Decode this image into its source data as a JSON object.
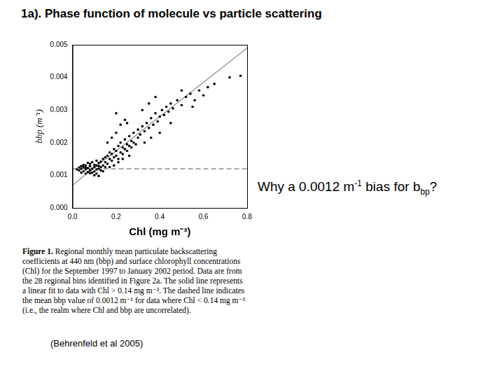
{
  "heading": "1a). Phase function of molecule vs particle scattering",
  "question": [
    {
      "text": "Why a 0.0012 m"
    },
    {
      "sup": "-1"
    },
    {
      "text": " bias for b"
    },
    {
      "sub": "bp"
    },
    {
      "text": "?"
    }
  ],
  "caption": {
    "label": "Figure 1.",
    "text": "Regional monthly mean particulate backscattering coefficients at 440 nm (bbp) and surface chlorophyll concentrations (Chl) for the September 1997 to January 2002 period. Data are from the 28 regional bins identified in Figure 2a. The solid line represents a linear fit to data with Chl > 0.14 mg m⁻³. The dashed line indicates the mean bbp value of 0.0012 m⁻¹ for data where Chl < 0.14 mg m⁻³ (i.e., the realm where Chl and bbp are uncorrelated)."
  },
  "citation": "(Behrenfeld et al 2005)",
  "chart_data": {
    "type": "scatter",
    "x_label": "Chl (mg m⁻³)",
    "y_label": "bbp (m⁻¹)",
    "xlim": [
      0,
      0.8
    ],
    "xticks": [
      {
        "value": 0,
        "label": "0.0"
      },
      0.2,
      0.4,
      0.6,
      0.8
    ],
    "ylim": [
      0,
      0.005
    ],
    "yticks": [
      {
        "value": 0,
        "label": "0.000"
      },
      0.001,
      0.002,
      0.003,
      0.004,
      0.005
    ],
    "grid": false,
    "series": [
      {
        "type": "scatter",
        "color": "#000000",
        "marker": "circle",
        "x": [
          0.03,
          0.04,
          0.05,
          0.05,
          0.06,
          0.06,
          0.07,
          0.07,
          0.08,
          0.08,
          0.09,
          0.09,
          0.1,
          0.1,
          0.11,
          0.11,
          0.12,
          0.12,
          0.13,
          0.13,
          0.04,
          0.03,
          0.06,
          0.08,
          0.1,
          0.12,
          0.14,
          0.14,
          0.05,
          0.09,
          0.11,
          0.07,
          0.13,
          0.04,
          0.02,
          0.06,
          0.1,
          0.12,
          0.11,
          0.08,
          0.15,
          0.15,
          0.16,
          0.16,
          0.17,
          0.17,
          0.18,
          0.18,
          0.19,
          0.19,
          0.2,
          0.2,
          0.21,
          0.21,
          0.22,
          0.22,
          0.23,
          0.23,
          0.24,
          0.24,
          0.25,
          0.25,
          0.26,
          0.26,
          0.27,
          0.27,
          0.28,
          0.28,
          0.29,
          0.3,
          0.3,
          0.16,
          0.18,
          0.2,
          0.22,
          0.24,
          0.19,
          0.21,
          0.17,
          0.15,
          0.23,
          0.26,
          0.14,
          0.2,
          0.25,
          0.31,
          0.32,
          0.33,
          0.34,
          0.35,
          0.36,
          0.37,
          0.38,
          0.39,
          0.4,
          0.41,
          0.42,
          0.43,
          0.44,
          0.45,
          0.46,
          0.48,
          0.5,
          0.52,
          0.54,
          0.56,
          0.58,
          0.6,
          0.62,
          0.65,
          0.72,
          0.77,
          0.33,
          0.36,
          0.4,
          0.45,
          0.35,
          0.38,
          0.32,
          0.5,
          0.55
        ],
        "values": [
          0.00115,
          0.0012,
          0.00112,
          0.00125,
          0.00118,
          0.0013,
          0.0011,
          0.00122,
          0.00115,
          0.00128,
          0.0012,
          0.00108,
          0.00125,
          0.00132,
          0.00118,
          0.00105,
          0.00128,
          0.00138,
          0.00115,
          0.00125,
          0.00108,
          0.00124,
          0.00105,
          0.00135,
          0.00112,
          0.0012,
          0.0013,
          0.00112,
          0.00132,
          0.0014,
          0.00145,
          0.00138,
          0.00142,
          0.00128,
          0.00118,
          0.00123,
          0.001,
          0.00098,
          0.0013,
          0.00106,
          0.0014,
          0.00155,
          0.00135,
          0.0016,
          0.0015,
          0.0017,
          0.00145,
          0.00165,
          0.00155,
          0.0018,
          0.0016,
          0.00175,
          0.0015,
          0.0019,
          0.0017,
          0.002,
          0.00165,
          0.00185,
          0.0018,
          0.0021,
          0.00175,
          0.00195,
          0.0019,
          0.0022,
          0.00185,
          0.00205,
          0.002,
          0.0023,
          0.00195,
          0.00215,
          0.0024,
          0.002,
          0.00215,
          0.0023,
          0.00255,
          0.0027,
          0.0013,
          0.0014,
          0.00125,
          0.00125,
          0.0015,
          0.0016,
          0.0015,
          0.0029,
          0.0026,
          0.00225,
          0.0025,
          0.00235,
          0.0026,
          0.00245,
          0.00275,
          0.00255,
          0.0029,
          0.00265,
          0.0028,
          0.003,
          0.00285,
          0.0031,
          0.00295,
          0.0032,
          0.00305,
          0.0033,
          0.00315,
          0.0034,
          0.0035,
          0.0033,
          0.0036,
          0.00345,
          0.0037,
          0.0038,
          0.004,
          0.00405,
          0.002,
          0.00215,
          0.0023,
          0.0026,
          0.0032,
          0.0034,
          0.003,
          0.0036,
          0.0031
        ]
      },
      {
        "type": "line",
        "color": "#555555",
        "line_style": "solid",
        "x": [
          0,
          0.8
        ],
        "values": [
          0.0007,
          0.0049
        ]
      },
      {
        "type": "line",
        "color": "#555555",
        "line_style": "dashed",
        "x": [
          0,
          0.8
        ],
        "values": [
          0.0012,
          0.0012
        ]
      }
    ]
  }
}
